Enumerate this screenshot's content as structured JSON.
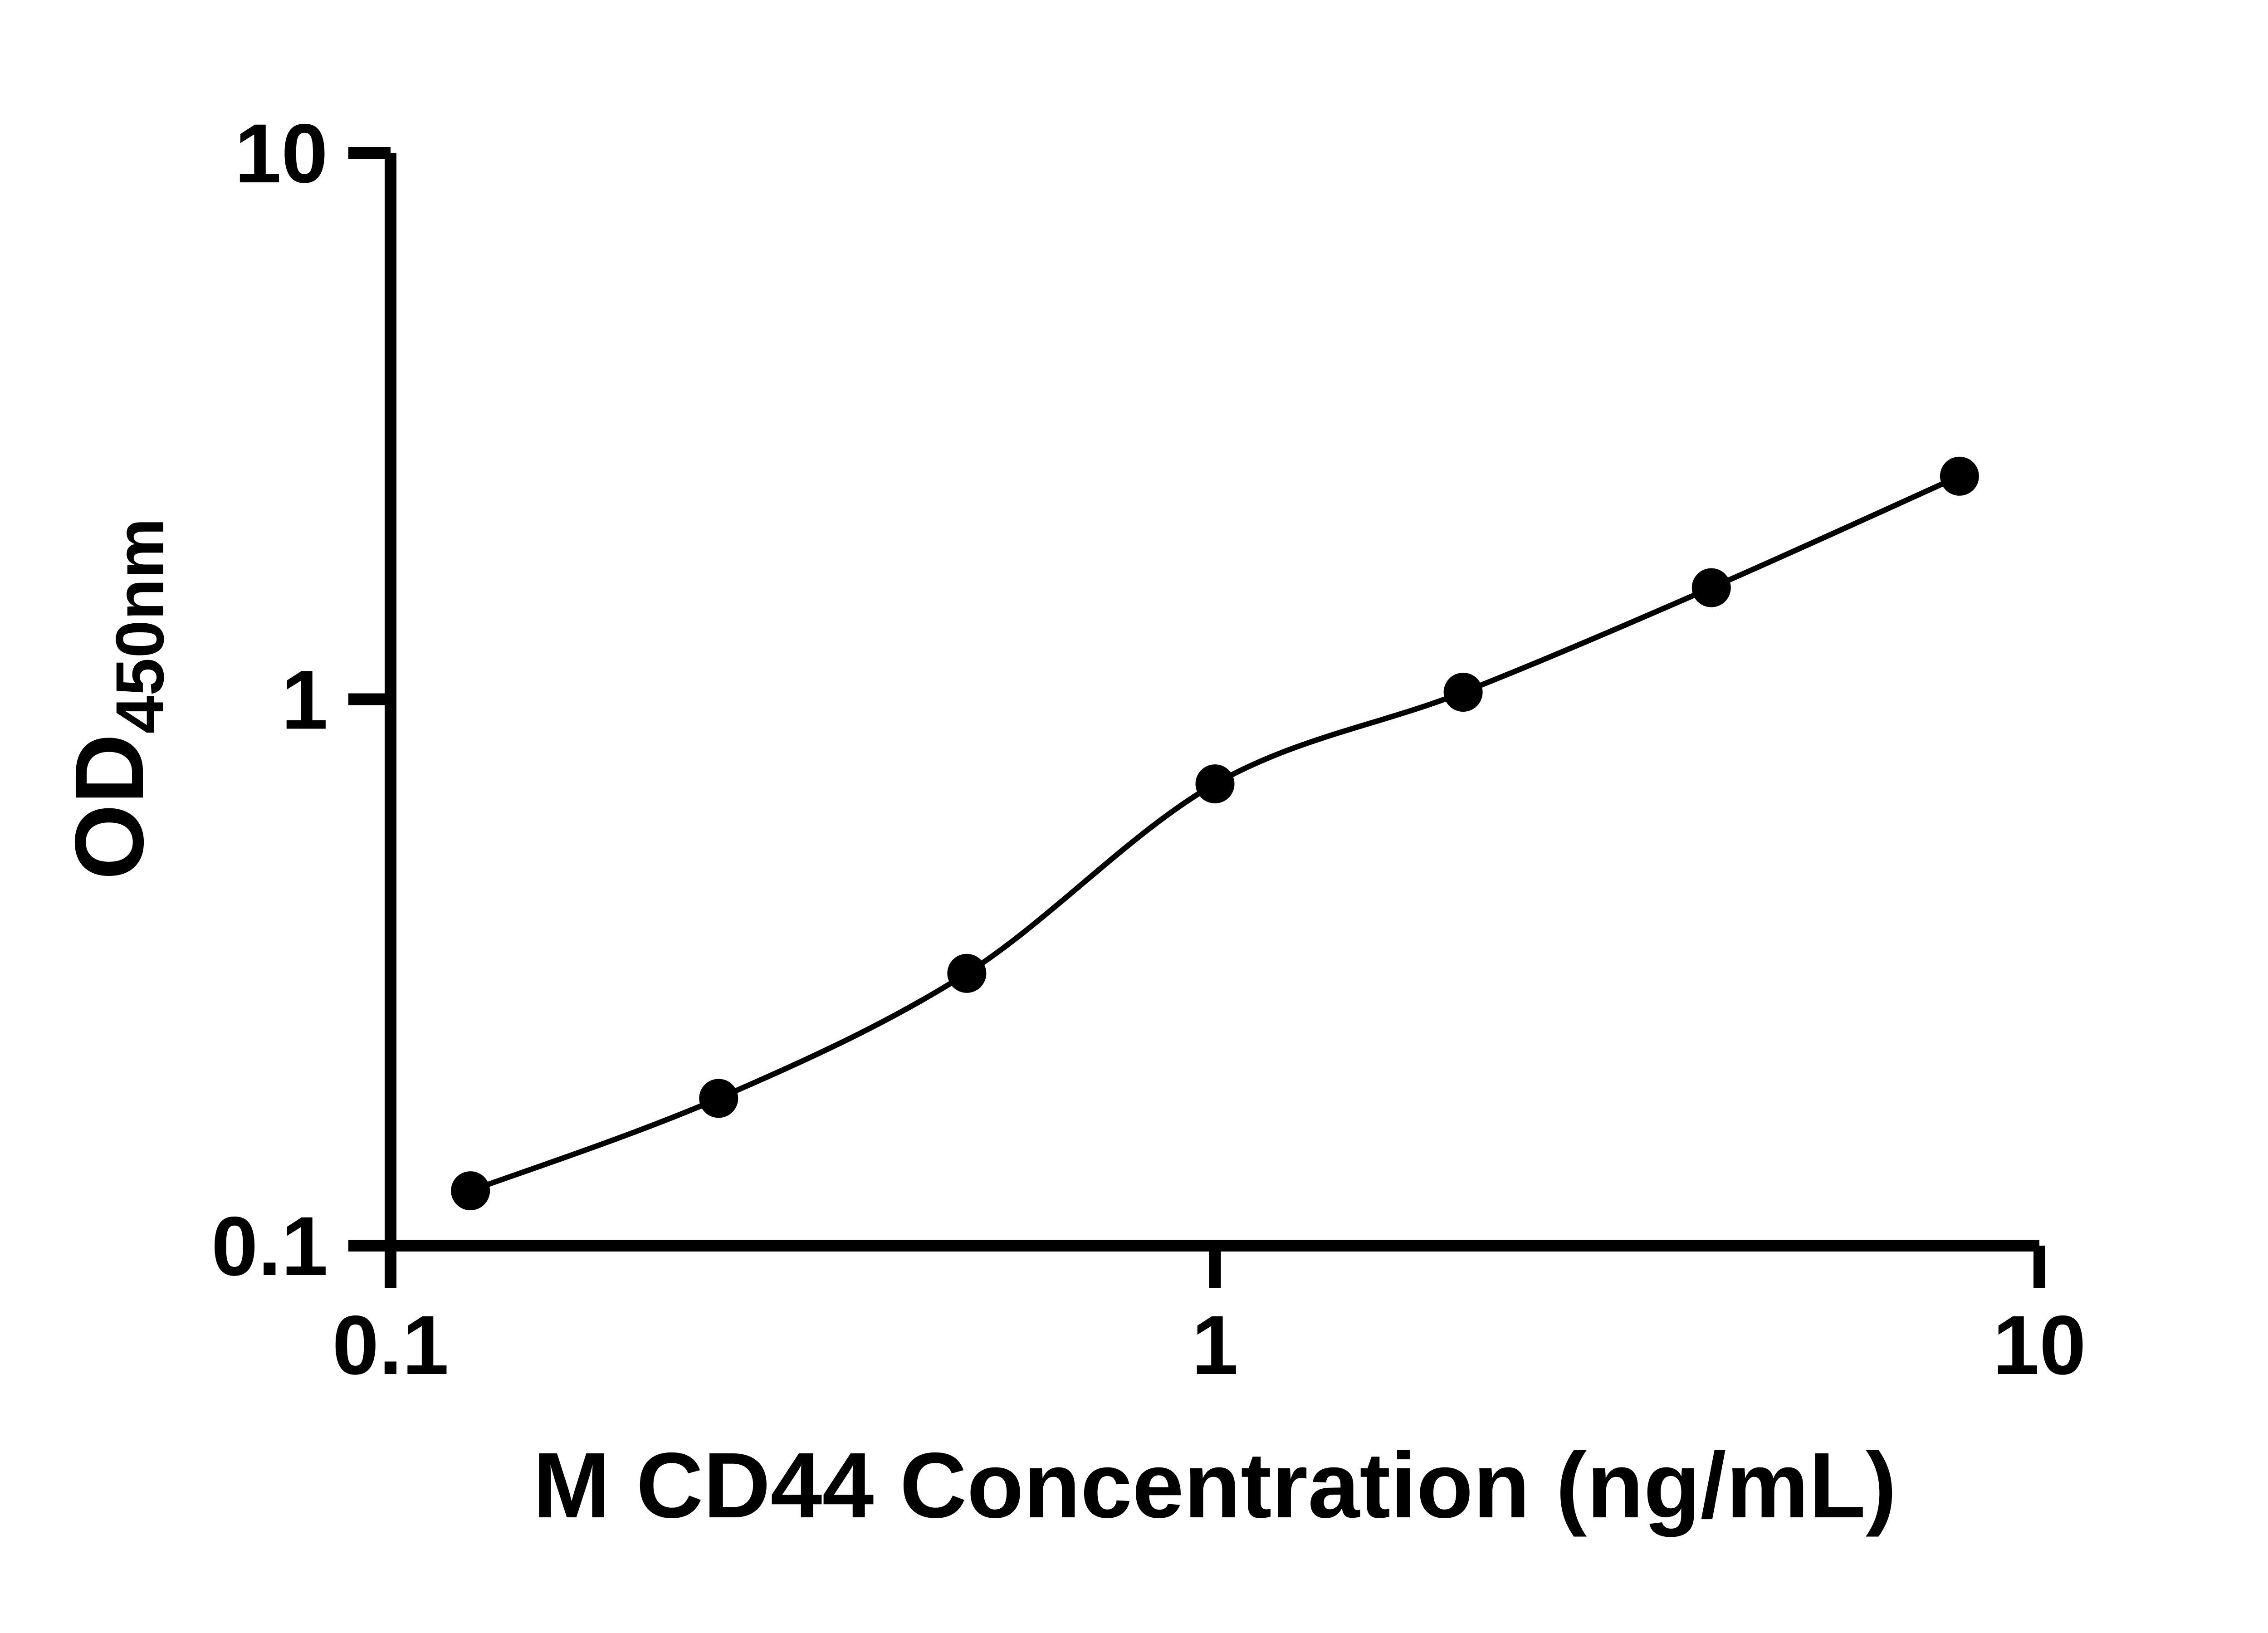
{
  "chart_data": {
    "type": "scatter",
    "xlabel": "M CD44 Concentration (ng/mL)",
    "ylabel_main": "OD",
    "ylabel_sub": "450nm",
    "x_scale": "log",
    "y_scale": "log",
    "xlim": [
      0.1,
      10
    ],
    "ylim": [
      0.1,
      10
    ],
    "grid": false,
    "legend": "none",
    "x_ticks": [
      {
        "value": 0.1,
        "label": "0.1"
      },
      {
        "value": 1,
        "label": "1"
      },
      {
        "value": 10,
        "label": "10"
      }
    ],
    "y_ticks": [
      {
        "value": 0.1,
        "label": "0.1"
      },
      {
        "value": 1,
        "label": "1"
      },
      {
        "value": 10,
        "label": "10"
      }
    ],
    "series": [
      {
        "marker": "circle",
        "line": "smooth",
        "color": "#000000",
        "points": [
          {
            "x": 0.125,
            "y": 0.126
          },
          {
            "x": 0.25,
            "y": 0.186
          },
          {
            "x": 0.5,
            "y": 0.315
          },
          {
            "x": 1,
            "y": 0.7
          },
          {
            "x": 2,
            "y": 1.03
          },
          {
            "x": 4,
            "y": 1.6
          },
          {
            "x": 8,
            "y": 2.56
          }
        ]
      }
    ]
  },
  "colors": {
    "background": "#ffffff",
    "axis": "#000000",
    "marker": "#000000",
    "curve": "#000000"
  }
}
